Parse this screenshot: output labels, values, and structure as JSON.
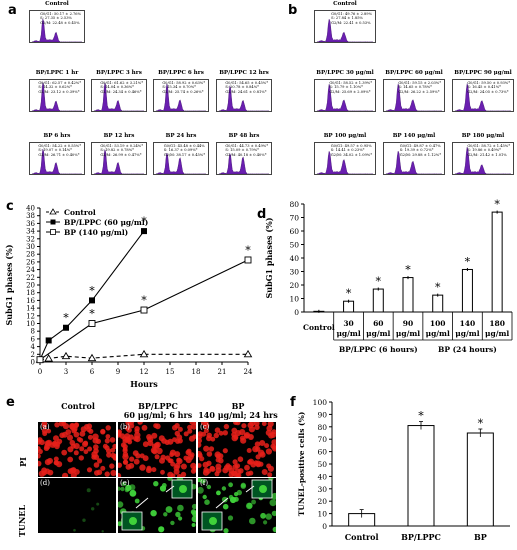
{
  "panels": {
    "a": {
      "letter": "a",
      "histograms": [
        {
          "title": "Control",
          "stats": [
            "G0/G1: 50.17 ± 2.76%",
            "S: 27.35 ± 2.53%",
            "G2/M: 22.48 ± 0.45%"
          ]
        },
        {
          "title": "BP/LPPC 1 hr",
          "stats": [
            "G0/G1: 62.57 ± 0.42%*",
            "S: 14.32 ± 0.62%*",
            "G2/M: 23.12 ± 0.39%*"
          ]
        },
        {
          "title": "BP/LPPC 3 hrs",
          "stats": [
            "G0/G1: 61.62 ± 3.21%*",
            "S: 14.04 ± 0.36%*",
            "G2/M: 24.34 ± 0.46%*"
          ]
        },
        {
          "title": "BP/LPPC 6 hrs",
          "stats": [
            "G0/G1: 58.92 ± 0.63%*",
            "S: 15.34 ± 0.70%*",
            "G2/M: 25.74 ± 0.26%*"
          ]
        },
        {
          "title": "BP/LPPC 12 hrs",
          "stats": [
            "G0/G1: 54.65 ± 0.45%*",
            "S: 20.78 ± 0.84%*",
            "G2/M: 24.61 ± 0.81%*"
          ]
        },
        {
          "title": "BP 6 hrs",
          "stats": [
            "G0/G1: 54.22 ± 0.55%*",
            "S: 19.07 ± 0.14%*",
            "G2/M: 26.71 ± 0.40%*"
          ]
        },
        {
          "title": "BP 12 hrs",
          "stats": [
            "G0/G1: 53.19 ± 0.24%*",
            "S: 19.82 ± 0.78%*",
            "G2/M: 26.99 ± 0.47%*"
          ]
        },
        {
          "title": "BP 24 hrs",
          "stats": [
            "G0/G1: 45.48 ± 0.44%",
            "S: 16.37 ± 0.09%*",
            "G2/M: 38.17 ± 0.45%*"
          ]
        },
        {
          "title": "BP 48 hrs",
          "stats": [
            "G0/G1: 44.73 ± 0.49%*",
            "S: 15.09 ± 0.79%*",
            "G2/M: 40.18 ± 0.40%*"
          ]
        }
      ]
    },
    "b": {
      "letter": "b",
      "histograms": [
        {
          "title": "Control",
          "stats": [
            "G0/G1: 49.76 ± 2.89%",
            "S: 27.84 ± 1.85%",
            "G2/M: 22.41 ± 0.53%"
          ]
        },
        {
          "title": "BP/LPPC 30 μg/ml",
          "stats": [
            "G0/G1: 58.52 ± 1.39%*",
            "S: 15.79 ± 1.10%*",
            "G2/M: 25.69 ± 2.09%*"
          ]
        },
        {
          "title": "BP/LPPC 60 μg/ml",
          "stats": [
            "G0/G1: 59.15 ± 2.03%*",
            "S: 14.65 ± 0.78%*",
            "G2/M: 26.22 ± 2.59%*"
          ]
        },
        {
          "title": "BP/LPPC 90 μg/ml",
          "stats": [
            "G0/G1: 59.50 ± 0.93%*",
            "S: 16.45 ± 0.41%*",
            "G2/M: 24.05 ± 0.73%*"
          ]
        },
        {
          "title": "BP 100 μg/ml",
          "stats": [
            "G0/G1: 49.57 ± 0.95%",
            "S: 14.41 ± 0.23%*",
            "G2/M: 34.02 ± 1.09%*"
          ]
        },
        {
          "title": "BP 140 μg/ml",
          "stats": [
            "G0/G1: 49.87 ± 0.47%",
            "S: 19.39 ± 0.72%*",
            "G2/M: 29.88 ± 1.12%*"
          ]
        },
        {
          "title": "BP 180 μg/ml",
          "stats": [
            "G0/G1: 58.72 ± 1.45%*",
            "S: 19.86 ± 0.49%*",
            "G2/M: 21.42 ± 1.01%"
          ]
        }
      ]
    },
    "c": {
      "letter": "c",
      "chart_data": {
        "type": "line",
        "xlabel": "Hours",
        "ylabel": "SubG1 phases (%)",
        "xticks": [
          0,
          3,
          6,
          9,
          12,
          15,
          18,
          21,
          24
        ],
        "yticks": [
          0,
          2,
          4,
          6,
          8,
          10,
          12,
          14,
          16,
          18,
          20,
          22,
          24,
          26,
          28,
          30,
          32,
          34,
          36,
          38,
          40
        ],
        "xlim": [
          0,
          24
        ],
        "ylim": [
          0,
          40
        ],
        "legend_position": "top-left",
        "series": [
          {
            "name": "Control",
            "marker": "open-triangle",
            "dashed": true,
            "points": [
              [
                0,
                0.6
              ],
              [
                1,
                0.9
              ],
              [
                3,
                1.5
              ],
              [
                6,
                1.0
              ],
              [
                12,
                2.0
              ],
              [
                24,
                2.0
              ]
            ],
            "sig": []
          },
          {
            "name": "BP/LPPC (60 μg/ml)",
            "marker": "filled-square",
            "dashed": false,
            "points": [
              [
                0,
                0.6
              ],
              [
                1,
                5.6
              ],
              [
                3,
                8.9
              ],
              [
                6,
                16.0
              ],
              [
                12,
                34.0
              ]
            ],
            "sig": [
              3,
              6,
              12
            ]
          },
          {
            "name": "BP (140 μg/ml)",
            "marker": "open-square",
            "dashed": false,
            "points": [
              [
                0,
                0.6
              ],
              [
                6,
                10.0
              ],
              [
                12,
                13.5
              ],
              [
                24,
                26.5
              ]
            ],
            "sig": [
              6,
              12,
              24
            ]
          }
        ],
        "significance_label": "*"
      }
    },
    "d": {
      "letter": "d",
      "chart_data": {
        "type": "bar",
        "ylabel": "SubG1 phases (%)",
        "ylim": [
          0,
          80
        ],
        "yticks": [
          0,
          10,
          20,
          30,
          40,
          50,
          60,
          70,
          80
        ],
        "categories": [
          "Control",
          "30 μg/ml",
          "60 μg/ml",
          "90 μg/ml",
          "100 μg/ml",
          "140 μg/ml",
          "180 μg/ml"
        ],
        "values": [
          0.5,
          8.0,
          17.0,
          25.5,
          12.5,
          31.5,
          74.0
        ],
        "significant": [
          false,
          true,
          true,
          true,
          true,
          true,
          true
        ],
        "groups": [
          {
            "label": "BP/LPPC (6 hours)",
            "from": 1,
            "to": 3
          },
          {
            "label": "BP (24 hours)",
            "from": 4,
            "to": 6
          }
        ],
        "significance_label": "*"
      }
    },
    "e": {
      "letter": "e",
      "col_headers": [
        {
          "line1": "Control",
          "line2": ""
        },
        {
          "line1": "BP/LPPC",
          "line2": "60 μg/ml; 6 hrs"
        },
        {
          "line1": "BP",
          "line2": "140 μg/ml; 24 hrs"
        }
      ],
      "row_labels": [
        "PI",
        "TUNEL"
      ],
      "images": [
        {
          "label": "(a)",
          "row": "PI"
        },
        {
          "label": "(b)",
          "row": "PI"
        },
        {
          "label": "(c)",
          "row": "PI"
        },
        {
          "label": "(d)",
          "row": "TUNEL"
        },
        {
          "label": "(e)",
          "row": "TUNEL"
        },
        {
          "label": "(f)",
          "row": "TUNEL"
        }
      ],
      "colors": {
        "pi": "#e8201a",
        "tunel": "#3fd13a"
      }
    },
    "f": {
      "letter": "f",
      "chart_data": {
        "type": "bar",
        "ylabel": "TUNEL-positive cells (%)",
        "ylim": [
          0,
          100
        ],
        "yticks": [
          0,
          10,
          20,
          30,
          40,
          50,
          60,
          70,
          80,
          90,
          100
        ],
        "categories": [
          "Control",
          "BP/LPPC",
          "BP"
        ],
        "values": [
          10,
          81,
          75
        ],
        "significant": [
          false,
          true,
          true
        ],
        "significance_label": "*"
      }
    }
  }
}
